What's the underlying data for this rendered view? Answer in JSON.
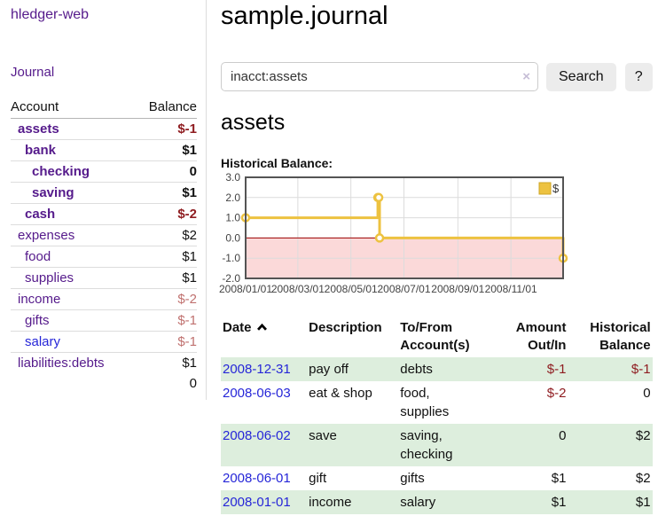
{
  "app": {
    "title": "hledger-web"
  },
  "sidebar": {
    "nav_journal": "Journal",
    "accounts": {
      "header_account": "Account",
      "header_balance": "Balance",
      "rows": [
        {
          "name": "assets",
          "depth": 1,
          "bold": true,
          "balance": "$-1"
        },
        {
          "name": "bank",
          "depth": 2,
          "bold": true,
          "balance": "$1"
        },
        {
          "name": "checking",
          "depth": 3,
          "bold": true,
          "balance": "0"
        },
        {
          "name": "saving",
          "depth": 3,
          "bold": true,
          "balance": "$1"
        },
        {
          "name": "cash",
          "depth": 2,
          "bold": true,
          "balance": "$-2"
        },
        {
          "name": "expenses",
          "depth": 1,
          "bold": false,
          "balance": "$2"
        },
        {
          "name": "food",
          "depth": 2,
          "bold": false,
          "balance": "$1"
        },
        {
          "name": "supplies",
          "depth": 2,
          "bold": false,
          "balance": "$1"
        },
        {
          "name": "income",
          "depth": 1,
          "bold": false,
          "balance": "$-2"
        },
        {
          "name": "gifts",
          "depth": 2,
          "bold": false,
          "balance": "$-1"
        },
        {
          "name": "salary",
          "depth": 2,
          "bold": false,
          "balance": "$-1",
          "link": "blue"
        },
        {
          "name": "liabilities:debts",
          "depth": 1,
          "bold": false,
          "balance": "$1"
        }
      ],
      "total": "0"
    }
  },
  "main": {
    "title": "sample.journal",
    "search": {
      "value": "inacct:assets",
      "clear_icon": "×",
      "button_label": "Search",
      "help_label": "?"
    },
    "account_heading": "assets",
    "section_label": "Historical Balance:"
  },
  "chart_data": {
    "type": "line",
    "step": true,
    "title": "Historical Balance:",
    "xlim": [
      "2008-01-01",
      "2008-12-31"
    ],
    "ylim": [
      -2,
      3
    ],
    "y_ticks": [
      {
        "v": 3,
        "label": "3.0"
      },
      {
        "v": 2,
        "label": "2.0"
      },
      {
        "v": 1,
        "label": "1.0"
      },
      {
        "v": 0,
        "label": "0.0"
      },
      {
        "v": -1,
        "label": "-1.0"
      },
      {
        "v": -2,
        "label": "-2.0"
      }
    ],
    "x_ticks": [
      {
        "date": "2008-01-01",
        "label": "2008/01/01"
      },
      {
        "date": "2008-03-01",
        "label": "2008/03/01"
      },
      {
        "date": "2008-05-01",
        "label": "2008/05/01"
      },
      {
        "date": "2008-07-01",
        "label": "2008/07/01"
      },
      {
        "date": "2008-09-01",
        "label": "2008/09/01"
      },
      {
        "date": "2008-11-01",
        "label": "2008/11/01"
      }
    ],
    "series": [
      {
        "name": "$",
        "color": "#edc240",
        "points": [
          {
            "x": "2008-01-01",
            "y": 1
          },
          {
            "x": "2008-06-01",
            "y": 2
          },
          {
            "x": "2008-06-02",
            "y": 2
          },
          {
            "x": "2008-06-03",
            "y": 0
          },
          {
            "x": "2008-12-31",
            "y": -1
          }
        ]
      }
    ],
    "legend": {
      "label": "$",
      "position": "top-right"
    },
    "colors": {
      "negative_region": "#fbd9d9",
      "zero_line": "#a00000",
      "grid": "#dcdcdc",
      "border": "#545454",
      "tick_text": "#444444"
    },
    "grid": true
  },
  "transactions": {
    "headers": [
      "Date",
      "Description",
      "To/From Account(s)",
      "Amount Out/In",
      "Historical Balance"
    ],
    "sort": {
      "column": "Date",
      "direction": "ascending"
    },
    "rows": [
      {
        "date": "2008-12-31",
        "description": "pay off",
        "accounts": "debts",
        "amount": "$-1",
        "balance": "$-1"
      },
      {
        "date": "2008-06-03",
        "description": "eat & shop",
        "accounts": "food, supplies",
        "amount": "$-2",
        "balance": "0"
      },
      {
        "date": "2008-06-02",
        "description": "save",
        "accounts": "saving, checking",
        "amount": "0",
        "balance": "$2"
      },
      {
        "date": "2008-06-01",
        "description": "gift",
        "accounts": "gifts",
        "amount": "$1",
        "balance": "$2"
      },
      {
        "date": "2008-01-01",
        "description": "income",
        "accounts": "salary",
        "amount": "$1",
        "balance": "$1"
      }
    ]
  }
}
